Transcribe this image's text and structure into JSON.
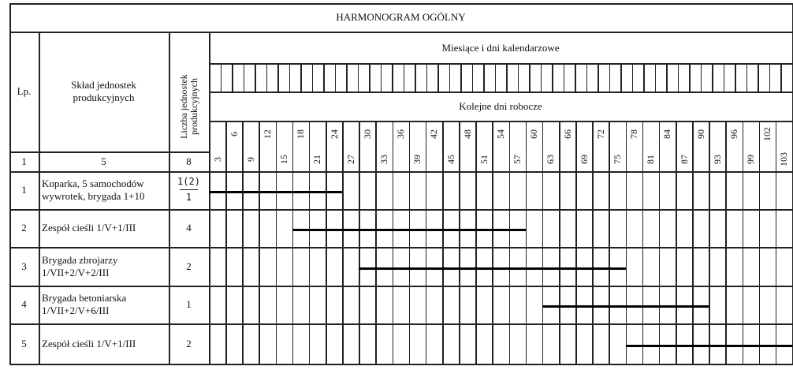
{
  "title": "HARMONOGRAM OGÓLNY",
  "headers": {
    "lp": "Lp.",
    "sklad": "Skład jednostek produkcyjnych",
    "liczba": "Liczba jednostek produkcyjnych",
    "miesiace": "Miesiące i dni kalendarzowe",
    "kolejne": "Kolejne dni robocze",
    "col_numbers": [
      "1",
      "5",
      "8"
    ]
  },
  "day_labels": [
    "3",
    "6",
    "9",
    "12",
    "15",
    "18",
    "21",
    "24",
    "27",
    "30",
    "33",
    "36",
    "39",
    "42",
    "45",
    "48",
    "51",
    "54",
    "57",
    "60",
    "63",
    "66",
    "69",
    "72",
    "75",
    "78",
    "81",
    "84",
    "87",
    "90",
    "93",
    "96",
    "99",
    "102",
    "103"
  ],
  "rows": [
    {
      "lp": "1",
      "sklad": [
        "Koparka, 5 samochodów",
        "wywrotek, brygada 1+10"
      ],
      "liczba_num": "1(2)",
      "liczba_den": "1"
    },
    {
      "lp": "2",
      "sklad": [
        "Zespół cieśli 1/V+1/III"
      ],
      "liczba": "4"
    },
    {
      "lp": "3",
      "sklad": [
        "Brygada zbrojarzy",
        "1/VII+2/V+2/III"
      ],
      "liczba": "2"
    },
    {
      "lp": "4",
      "sklad": [
        "Brygada betoniarska",
        "1/VII+2/V+6/III"
      ],
      "liczba": "1"
    },
    {
      "lp": "5",
      "sklad": [
        "Zespół cieśli 1/V+1/III"
      ],
      "liczba": "2"
    }
  ],
  "chart_data": {
    "type": "gantt",
    "tasks": [
      {
        "row": "1",
        "start_day": 1,
        "end_day": 24
      },
      {
        "row": "2",
        "start_day": 16,
        "end_day": 57
      },
      {
        "row": "3",
        "start_day": 28,
        "end_day": 75
      },
      {
        "row": "4",
        "start_day": 61,
        "end_day": 90
      },
      {
        "row": "5",
        "start_day": 76,
        "end_day": 105
      }
    ],
    "xlim": [
      0,
      105
    ]
  }
}
